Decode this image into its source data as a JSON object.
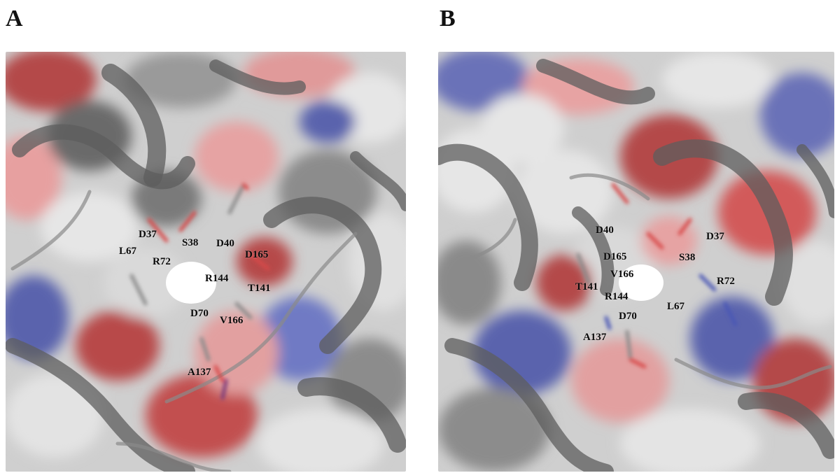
{
  "panels": [
    {
      "letter": "A",
      "residues": {
        "D37": "D37",
        "S38": "S38",
        "D40": "D40",
        "D165": "D165",
        "L67": "L67",
        "R72": "R72",
        "R144": "R144",
        "T141": "T141",
        "D70": "D70",
        "V166": "V166",
        "A137": "A137"
      }
    },
    {
      "letter": "B",
      "residues": {
        "D40": "D40",
        "D37": "D37",
        "D165": "D165",
        "S38": "S38",
        "V166": "V166",
        "R72": "R72",
        "T141": "T141",
        "R144": "R144",
        "L67": "L67",
        "D70": "D70",
        "A137": "A137"
      }
    }
  ],
  "colors": {
    "surface": "#d9d9d9",
    "carbon_ribbon": "#6f6f6f",
    "oxygen": "#d84a4a",
    "nitrogen": "#4a56b5",
    "pocket": "#ffffff"
  }
}
